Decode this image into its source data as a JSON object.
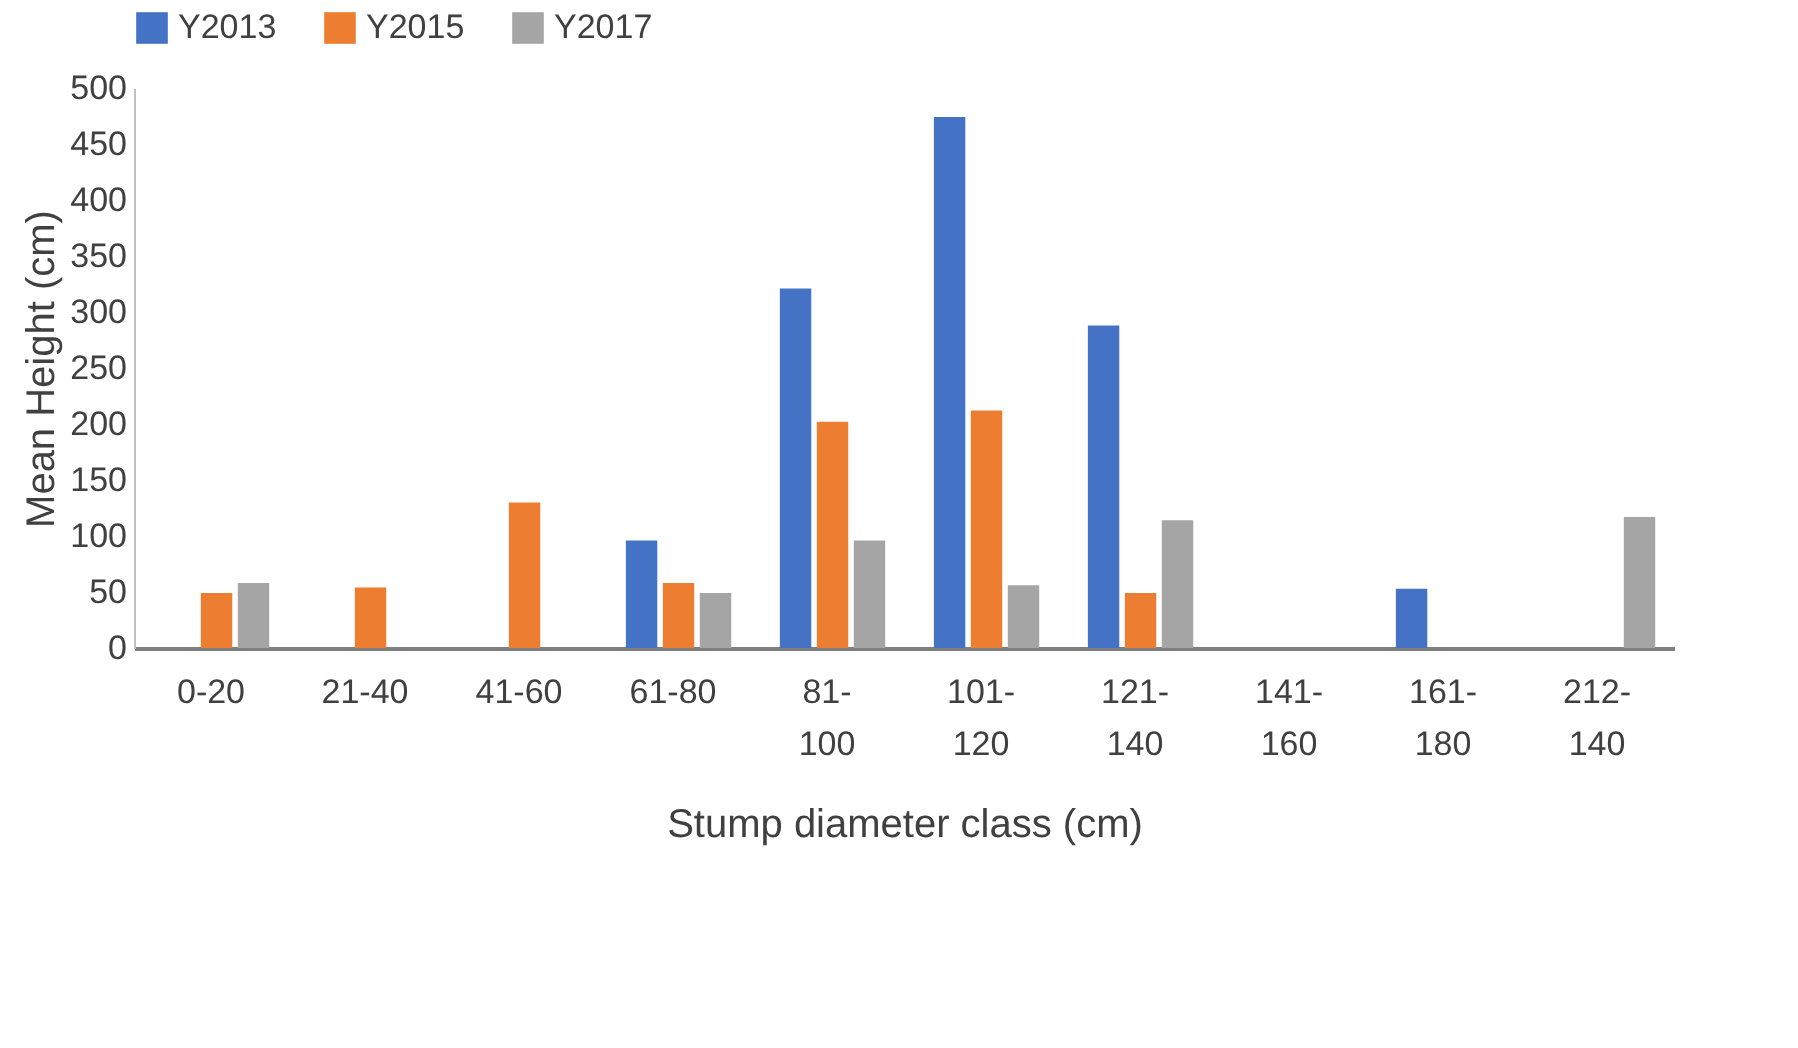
{
  "chart_data": {
    "type": "bar",
    "xlabel": "Stump diameter class (cm)",
    "ylabel": "Mean Height (cm)",
    "categories": [
      "0-20",
      "21-40",
      "41-60",
      "61-80",
      "81-100",
      "101-120",
      "121-140",
      "141-160",
      "161-180",
      "212-140"
    ],
    "series": [
      {
        "name": "Y2013",
        "color": "#4472c4",
        "values": [
          null,
          null,
          null,
          96,
          321,
          474,
          288,
          null,
          53,
          null
        ]
      },
      {
        "name": "Y2015",
        "color": "#ed7d31",
        "values": [
          49,
          54,
          130,
          58,
          202,
          212,
          49,
          null,
          null,
          null
        ]
      },
      {
        "name": "Y2017",
        "color": "#a5a5a5",
        "values": [
          58,
          null,
          null,
          49,
          96,
          56,
          114,
          null,
          null,
          117
        ]
      }
    ],
    "ylim": [
      0,
      500
    ],
    "yticks": [
      0,
      50,
      100,
      150,
      200,
      250,
      300,
      350,
      400,
      450,
      500
    ],
    "grid": false,
    "legend": "top"
  }
}
